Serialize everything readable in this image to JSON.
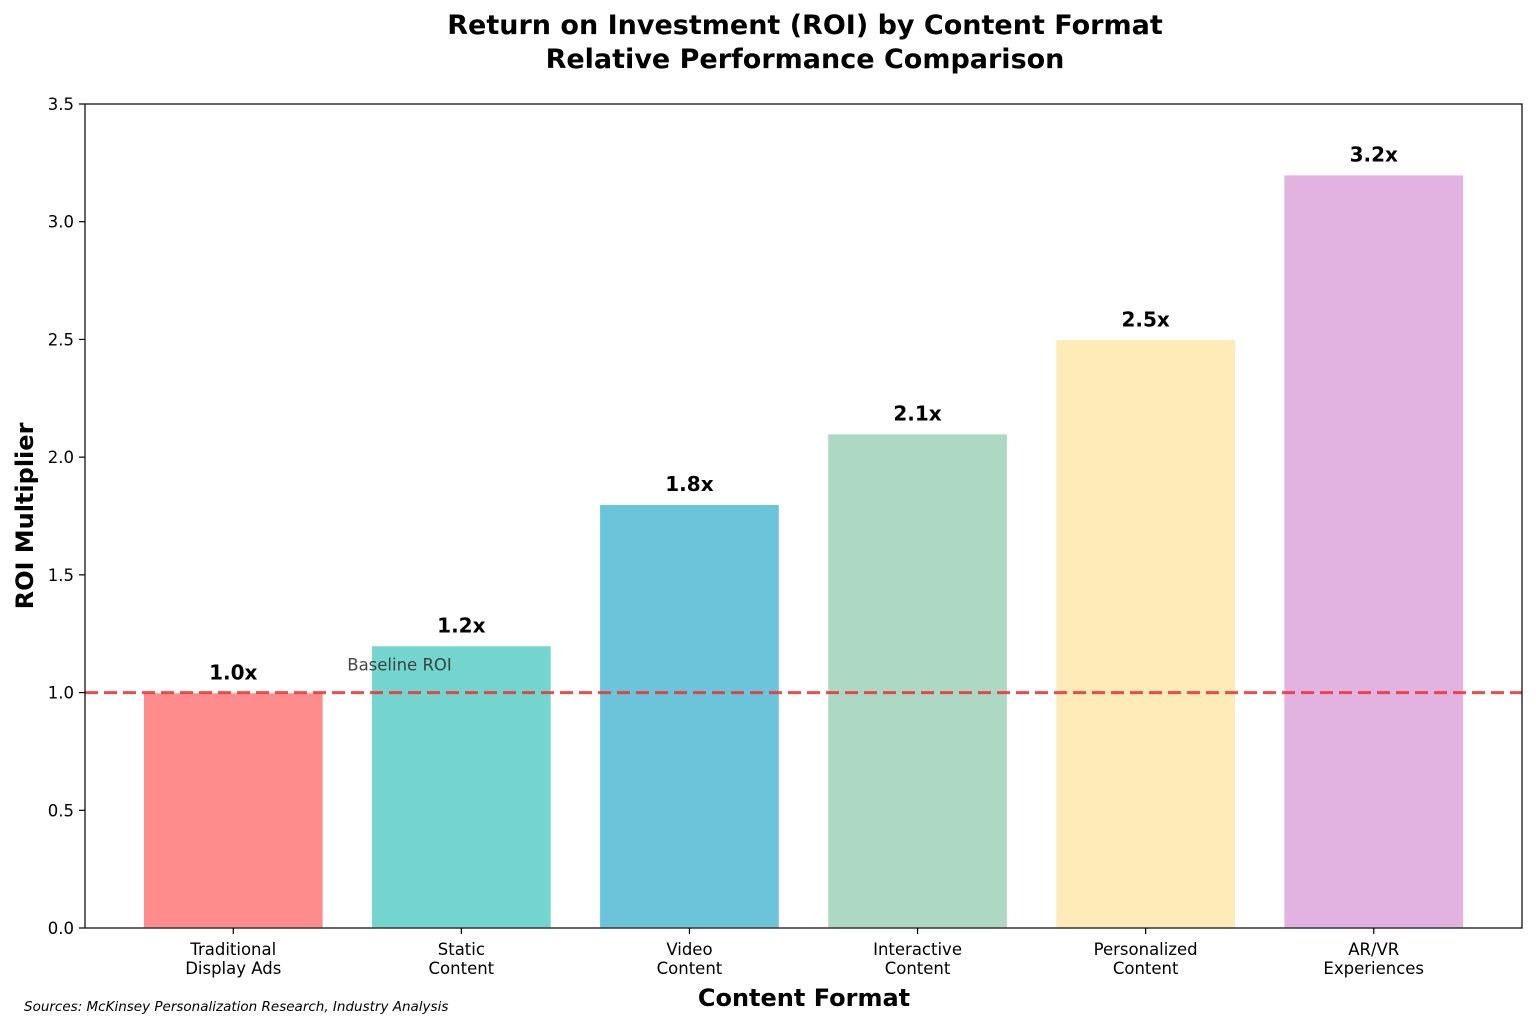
{
  "chart_data": {
    "type": "bar",
    "title": "Return on Investment (ROI) by Content Format",
    "subtitle": "Relative Performance Comparison",
    "xlabel": "Content Format",
    "ylabel": "ROI Multiplier",
    "categories": [
      [
        "Traditional",
        "Display Ads"
      ],
      [
        "Static",
        "Content"
      ],
      [
        "Video",
        "Content"
      ],
      [
        "Interactive",
        "Content"
      ],
      [
        "Personalized",
        "Content"
      ],
      [
        "AR/VR",
        "Experiences"
      ]
    ],
    "values": [
      1.0,
      1.2,
      1.8,
      2.1,
      2.5,
      3.2
    ],
    "value_labels": [
      "1.0x",
      "1.2x",
      "1.8x",
      "2.1x",
      "2.5x",
      "3.2x"
    ],
    "colors": [
      "#FF8C8C",
      "#74D5CF",
      "#6BC4D9",
      "#ADD8C4",
      "#FFEBB7",
      "#E2B2E1"
    ],
    "ylim": [
      0,
      3.5
    ],
    "yticks": [
      0.0,
      0.5,
      1.0,
      1.5,
      2.0,
      2.5,
      3.0,
      3.5
    ],
    "ytick_labels": [
      "0.0",
      "0.5",
      "1.0",
      "1.5",
      "2.0",
      "2.5",
      "3.0",
      "3.5"
    ],
    "grid": false,
    "reference_line": {
      "value": 1.0,
      "label": "Baseline ROI",
      "color": "#E8393C",
      "style": "dashed"
    },
    "source": "Sources: McKinsey Personalization Research, Industry Analysis"
  }
}
